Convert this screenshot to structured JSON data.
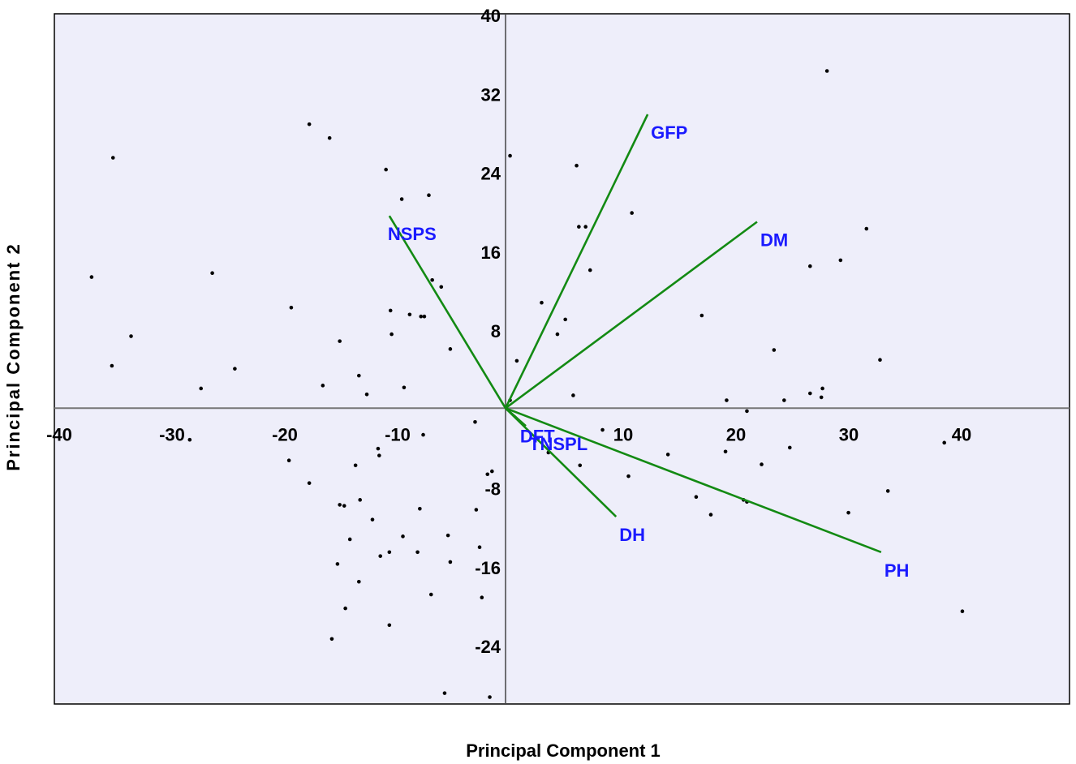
{
  "chart_data": {
    "type": "scatter",
    "subtype": "pca-biplot",
    "title": "",
    "xlabel": "Principal Component 1",
    "ylabel": "Principal Component 2",
    "xlim": [
      -40,
      50
    ],
    "ylim": [
      -30,
      40
    ],
    "x_ticks": [
      -40,
      -30,
      -20,
      -10,
      10,
      20,
      30,
      40
    ],
    "x_tick_labels": [
      "-40",
      "-30",
      "-20",
      "-10",
      "10",
      "20",
      "30",
      "40"
    ],
    "y_ticks": [
      -24,
      -16,
      -8,
      8,
      16,
      24,
      32,
      40
    ],
    "y_tick_labels": [
      "-24",
      "-16",
      "-8",
      "8",
      "16",
      "24",
      "32",
      "40"
    ],
    "grid": false,
    "colors": {
      "plot_background": "#eeeefa",
      "vector": "#138a13",
      "vector_label": "#1a1aff",
      "points": "#000000",
      "axis_line": "#777777"
    },
    "vectors": [
      {
        "label": "GFP",
        "x": 12.6,
        "y": 29.8
      },
      {
        "label": "DM",
        "x": 22.3,
        "y": 18.9
      },
      {
        "label": "NSPS",
        "x": -10.3,
        "y": 19.5
      },
      {
        "label": "DH",
        "x": 9.8,
        "y": -11.0
      },
      {
        "label": "PH",
        "x": 33.3,
        "y": -14.6
      },
      {
        "label": "TNSPL",
        "x": 1.8,
        "y": -1.8
      },
      {
        "label": "DFT",
        "x": 1.0,
        "y": -1.0
      }
    ],
    "points": [
      [
        -36.7,
        13.3
      ],
      [
        -34.8,
        25.4
      ],
      [
        -34.9,
        4.3
      ],
      [
        -33.2,
        7.3
      ],
      [
        -28.0,
        -3.2
      ],
      [
        -27.0,
        2.0
      ],
      [
        -26.0,
        13.7
      ],
      [
        -24.0,
        4.0
      ],
      [
        -19.0,
        10.2
      ],
      [
        -19.2,
        -5.3
      ],
      [
        -17.4,
        28.8
      ],
      [
        -17.4,
        -7.6
      ],
      [
        -16.2,
        2.3
      ],
      [
        -15.6,
        27.4
      ],
      [
        -15.4,
        -23.4
      ],
      [
        -14.9,
        -15.8
      ],
      [
        -14.7,
        -9.8
      ],
      [
        -14.7,
        6.8
      ],
      [
        -14.3,
        -9.9
      ],
      [
        -14.2,
        -20.3
      ],
      [
        -13.8,
        -13.3
      ],
      [
        -13.3,
        -5.8
      ],
      [
        -13.0,
        -17.6
      ],
      [
        -12.9,
        -9.3
      ],
      [
        -13.0,
        3.3
      ],
      [
        -12.3,
        1.4
      ],
      [
        -11.8,
        -11.3
      ],
      [
        -11.3,
        -4.1
      ],
      [
        -11.2,
        -4.8
      ],
      [
        -11.1,
        -15.0
      ],
      [
        -10.6,
        24.2
      ],
      [
        -10.3,
        -14.6
      ],
      [
        -10.3,
        -22.0
      ],
      [
        -10.2,
        9.9
      ],
      [
        -10.1,
        7.5
      ],
      [
        -9.2,
        21.2
      ],
      [
        -9.1,
        -13.0
      ],
      [
        -9.0,
        2.1
      ],
      [
        -8.5,
        9.5
      ],
      [
        -7.8,
        -14.6
      ],
      [
        -7.6,
        -10.2
      ],
      [
        -7.5,
        9.3
      ],
      [
        -7.3,
        -2.7
      ],
      [
        -7.2,
        9.3
      ],
      [
        -6.8,
        21.6
      ],
      [
        -6.6,
        -18.9
      ],
      [
        -6.5,
        13.0
      ],
      [
        -5.7,
        12.3
      ],
      [
        -5.1,
        -12.9
      ],
      [
        -4.9,
        6.0
      ],
      [
        -4.9,
        -15.6
      ],
      [
        -5.4,
        -28.9
      ],
      [
        -2.7,
        -1.4
      ],
      [
        -2.6,
        -10.3
      ],
      [
        -2.3,
        -14.1
      ],
      [
        -2.1,
        -19.2
      ],
      [
        -1.6,
        -6.7
      ],
      [
        -1.4,
        -29.3
      ],
      [
        -1.2,
        -6.4
      ],
      [
        0.4,
        0.8
      ],
      [
        0.4,
        25.6
      ],
      [
        1.0,
        4.8
      ],
      [
        3.2,
        10.7
      ],
      [
        3.8,
        -4.5
      ],
      [
        4.6,
        7.5
      ],
      [
        5.3,
        9.0
      ],
      [
        6.0,
        1.3
      ],
      [
        6.3,
        24.6
      ],
      [
        6.5,
        18.4
      ],
      [
        6.6,
        -5.8
      ],
      [
        7.1,
        18.4
      ],
      [
        7.5,
        14.0
      ],
      [
        8.6,
        -2.2
      ],
      [
        10.9,
        -6.9
      ],
      [
        11.2,
        19.8
      ],
      [
        14.4,
        -4.7
      ],
      [
        16.9,
        -9.0
      ],
      [
        17.4,
        9.4
      ],
      [
        18.2,
        -10.8
      ],
      [
        19.6,
        0.8
      ],
      [
        19.5,
        -4.4
      ],
      [
        21.1,
        -9.3
      ],
      [
        21.4,
        -9.5
      ],
      [
        21.4,
        -0.3
      ],
      [
        22.7,
        -5.7
      ],
      [
        23.8,
        5.9
      ],
      [
        24.7,
        0.8
      ],
      [
        25.2,
        -4.0
      ],
      [
        27.0,
        14.4
      ],
      [
        27.0,
        1.5
      ],
      [
        28.0,
        1.1
      ],
      [
        28.1,
        2.0
      ],
      [
        28.5,
        34.2
      ],
      [
        29.7,
        15.0
      ],
      [
        30.4,
        -10.6
      ],
      [
        32.0,
        18.2
      ],
      [
        33.2,
        4.9
      ],
      [
        33.9,
        -8.4
      ],
      [
        38.9,
        -3.5
      ],
      [
        40.5,
        -20.6
      ]
    ]
  }
}
